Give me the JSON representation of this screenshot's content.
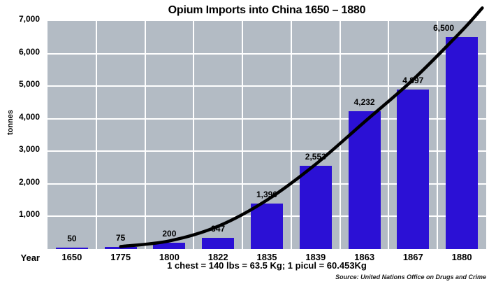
{
  "chart_data": {
    "type": "bar",
    "title": "Opium Imports into China 1650 – 1880",
    "ylabel": "tonnes",
    "xlabel": "Year",
    "categories": [
      "1650",
      "1775",
      "1800",
      "1822",
      "1835",
      "1839",
      "1863",
      "1867",
      "1880"
    ],
    "values": [
      50,
      75,
      200,
      347,
      1390,
      2553,
      4232,
      4897,
      6500
    ],
    "value_labels": [
      "50",
      "75",
      "200",
      "347",
      "1,390",
      "2,553",
      "4,232",
      "4,897",
      "6,500"
    ],
    "ylim": [
      0,
      7000
    ],
    "ytick_step": 1000,
    "ytick_labels": [
      "1,000",
      "2,000",
      "3,000",
      "4,000",
      "5,000",
      "6,000",
      "7,000"
    ],
    "grid": true,
    "legend": "none",
    "trendline": {
      "type": "exponential-freehand",
      "points": [
        [
          1,
          75
        ],
        [
          2,
          250
        ],
        [
          3,
          700
        ],
        [
          4,
          1500
        ],
        [
          5,
          2600
        ],
        [
          6,
          3900
        ],
        [
          7,
          5200
        ],
        [
          8,
          6700
        ],
        [
          8.42,
          7400
        ]
      ]
    },
    "note": "1 chest = 140 lbs = 63.5 Kg; 1 picul = 60.453Kg",
    "source": "Source: United Nations Office on Drugs and Crime",
    "colors": {
      "bar": "#2b10d5",
      "plot_background": "#b3bbc4",
      "gridline": "#ffffff",
      "trendline": "#000000",
      "text": "#000000",
      "background": "#ffffff"
    }
  }
}
